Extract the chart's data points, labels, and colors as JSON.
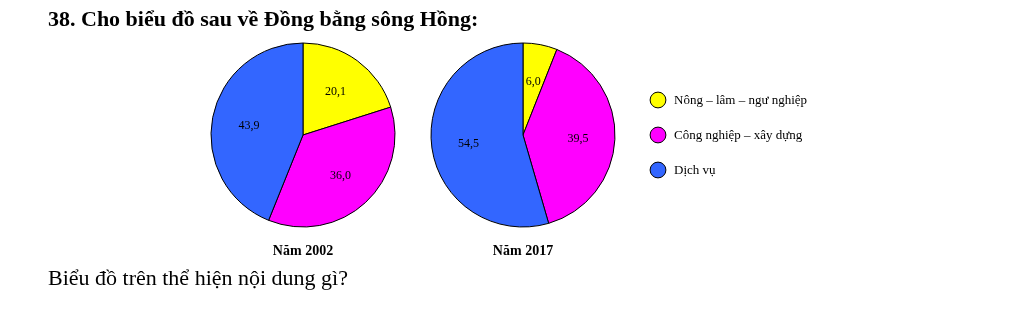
{
  "chart_data": [
    {
      "type": "pie",
      "title": "38. Cho biểu đồ sau về Đồng bằng sông Hồng:",
      "xlabel": "Năm 2002",
      "categories": [
        null,
        null,
        null
      ],
      "values": [
        20.1,
        36.0,
        43.9
      ],
      "value_labels": [
        "20,1",
        "36,0",
        "43,9"
      ],
      "colors": [
        "#ffff00",
        "#ff00ff",
        "#3366ff"
      ]
    },
    {
      "type": "pie",
      "xlabel": "Năm 2017",
      "categories": [
        "Nông – lâm – ngư nghiệp",
        "Công nghiệp – xây dựng",
        "Dịch vụ"
      ],
      "values": [
        6.0,
        39.5,
        54.5
      ],
      "value_labels": [
        "6,0",
        "39,5",
        "54,5"
      ],
      "colors": [
        "#ffff00",
        "#ff00ff",
        "#3366ff"
      ],
      "legend": "right",
      "annotations": [
        "Biểu đồ trên thể hiện nội dung gì?"
      ]
    }
  ]
}
